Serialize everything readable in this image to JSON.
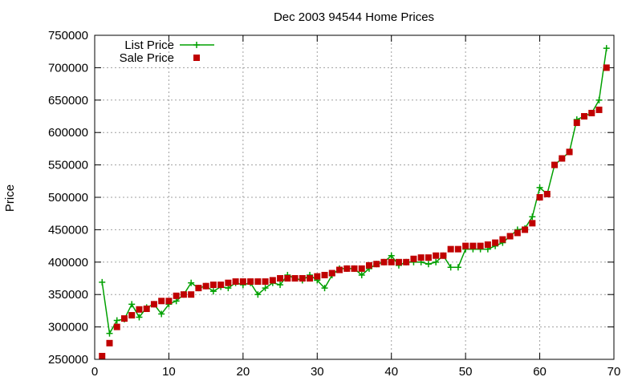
{
  "chart_data": {
    "type": "line",
    "title": "Dec 2003 94544 Home Prices",
    "xlabel": "",
    "ylabel": "Price",
    "xlim": [
      0,
      70
    ],
    "ylim": [
      250000,
      750000
    ],
    "xticks": [
      0,
      10,
      20,
      30,
      40,
      50,
      60,
      70
    ],
    "yticks": [
      250000,
      300000,
      350000,
      400000,
      450000,
      500000,
      550000,
      600000,
      650000,
      700000,
      750000
    ],
    "grid": true,
    "legend_position": "top-left",
    "series": [
      {
        "name": "List Price",
        "style": "line-plus",
        "color": "#00a000",
        "x": [
          1,
          2,
          3,
          4,
          5,
          6,
          7,
          8,
          9,
          10,
          11,
          12,
          13,
          14,
          15,
          16,
          17,
          18,
          19,
          20,
          21,
          22,
          23,
          24,
          25,
          26,
          27,
          28,
          29,
          30,
          31,
          32,
          33,
          34,
          35,
          36,
          37,
          38,
          39,
          40,
          41,
          42,
          43,
          44,
          45,
          46,
          47,
          48,
          49,
          50,
          51,
          52,
          53,
          54,
          55,
          56,
          57,
          58,
          59,
          60,
          61,
          62,
          63,
          64,
          65,
          66,
          67,
          68,
          69
        ],
        "values": [
          369000,
          290000,
          310000,
          312000,
          335000,
          315000,
          330000,
          335000,
          320000,
          335000,
          340000,
          350000,
          368000,
          360000,
          363000,
          355000,
          362000,
          360000,
          368000,
          365000,
          368000,
          350000,
          360000,
          368000,
          365000,
          380000,
          375000,
          372000,
          380000,
          372000,
          360000,
          380000,
          390000,
          390000,
          390000,
          380000,
          390000,
          397000,
          400000,
          410000,
          395000,
          400000,
          400000,
          400000,
          397000,
          400000,
          410000,
          392000,
          392000,
          420000,
          420000,
          420000,
          420000,
          425000,
          430000,
          440000,
          450000,
          452000,
          470000,
          515000,
          505000,
          550000,
          560000,
          570000,
          620000,
          625000,
          630000,
          650000,
          730000
        ]
      },
      {
        "name": "Sale Price",
        "style": "square",
        "color": "#c00000",
        "x": [
          1,
          2,
          3,
          4,
          5,
          6,
          7,
          8,
          9,
          10,
          11,
          12,
          13,
          14,
          15,
          16,
          17,
          18,
          19,
          20,
          21,
          22,
          23,
          24,
          25,
          26,
          27,
          28,
          29,
          30,
          31,
          32,
          33,
          34,
          35,
          36,
          37,
          38,
          39,
          40,
          41,
          42,
          43,
          44,
          45,
          46,
          47,
          48,
          49,
          50,
          51,
          52,
          53,
          54,
          55,
          56,
          57,
          58,
          59,
          60,
          61,
          62,
          63,
          64,
          65,
          66,
          67,
          68,
          69
        ],
        "values": [
          255000,
          275000,
          300000,
          313000,
          318000,
          327000,
          328000,
          335000,
          340000,
          340000,
          348000,
          350000,
          350000,
          360000,
          363000,
          365000,
          365000,
          368000,
          370000,
          370000,
          370000,
          370000,
          370000,
          372000,
          375000,
          375000,
          375000,
          375000,
          375000,
          378000,
          380000,
          383000,
          388000,
          390000,
          390000,
          390000,
          395000,
          397000,
          400000,
          400000,
          400000,
          400000,
          405000,
          407000,
          407000,
          410000,
          410000,
          420000,
          420000,
          425000,
          425000,
          425000,
          427000,
          430000,
          435000,
          440000,
          445000,
          450000,
          460000,
          500000,
          505000,
          550000,
          560000,
          570000,
          615000,
          625000,
          630000,
          635000,
          700000
        ]
      }
    ]
  }
}
